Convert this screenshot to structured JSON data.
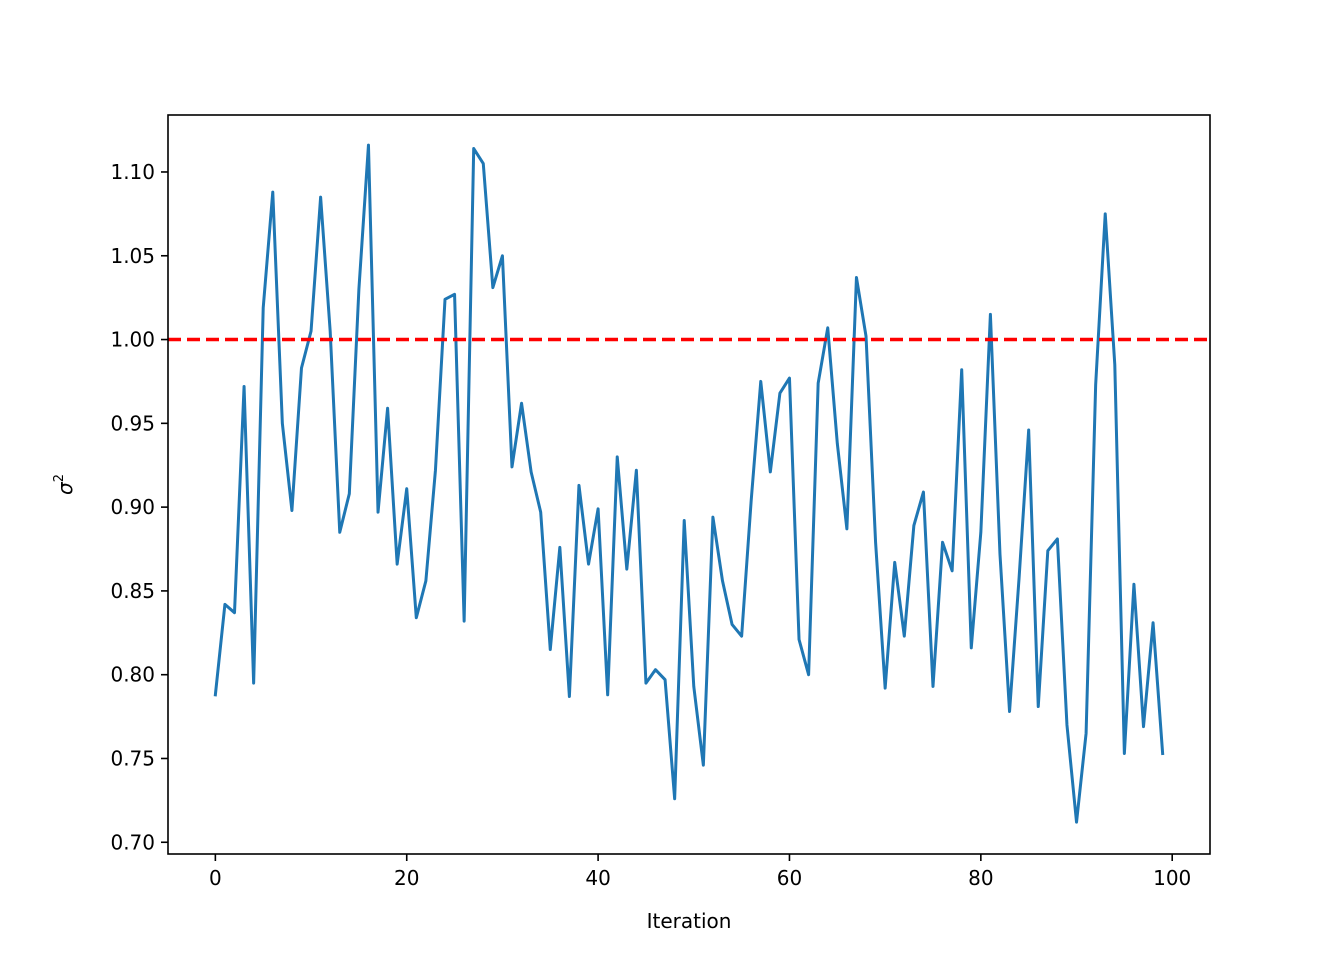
{
  "chart_data": {
    "type": "line",
    "xlabel": "Iteration",
    "ylabel": "σ",
    "ylabel_superscript": "2",
    "xlim": [
      -4.95,
      103.95
    ],
    "ylim": [
      0.693,
      1.134
    ],
    "xticks": [
      0,
      20,
      40,
      60,
      80,
      100
    ],
    "xtick_labels": [
      "0",
      "20",
      "40",
      "60",
      "80",
      "100"
    ],
    "yticks": [
      0.7,
      0.75,
      0.8,
      0.85,
      0.9,
      0.95,
      1.0,
      1.05,
      1.1
    ],
    "ytick_labels": [
      "0.70",
      "0.75",
      "0.80",
      "0.85",
      "0.90",
      "0.95",
      "1.00",
      "1.05",
      "1.10"
    ],
    "grid": false,
    "series": [
      {
        "color": "#1f77b4",
        "x": [
          0,
          1,
          2,
          3,
          4,
          5,
          6,
          7,
          8,
          9,
          10,
          11,
          12,
          13,
          14,
          15,
          16,
          17,
          18,
          19,
          20,
          21,
          22,
          23,
          24,
          25,
          26,
          27,
          28,
          29,
          30,
          31,
          32,
          33,
          34,
          35,
          36,
          37,
          38,
          39,
          40,
          41,
          42,
          43,
          44,
          45,
          46,
          47,
          48,
          49,
          50,
          51,
          52,
          53,
          54,
          55,
          56,
          57,
          58,
          59,
          60,
          61,
          62,
          63,
          64,
          65,
          66,
          67,
          68,
          69,
          70,
          71,
          72,
          73,
          74,
          75,
          76,
          77,
          78,
          79,
          80,
          81,
          82,
          83,
          84,
          85,
          86,
          87,
          88,
          89,
          90,
          91,
          92,
          93,
          94,
          95,
          96,
          97,
          98,
          99
        ],
        "values": [
          0.788,
          0.842,
          0.837,
          0.972,
          0.795,
          1.019,
          1.088,
          0.95,
          0.898,
          0.983,
          1.005,
          1.085,
          1.005,
          0.885,
          0.908,
          1.03,
          1.116,
          0.897,
          0.959,
          0.866,
          0.911,
          0.834,
          0.856,
          0.922,
          1.024,
          1.027,
          0.832,
          1.114,
          1.105,
          1.031,
          1.05,
          0.924,
          0.962,
          0.921,
          0.897,
          0.815,
          0.876,
          0.787,
          0.913,
          0.866,
          0.899,
          0.788,
          0.93,
          0.863,
          0.922,
          0.795,
          0.803,
          0.797,
          0.726,
          0.892,
          0.793,
          0.746,
          0.894,
          0.856,
          0.83,
          0.823,
          0.904,
          0.975,
          0.921,
          0.968,
          0.977,
          0.821,
          0.8,
          0.974,
          1.007,
          0.938,
          0.887,
          1.037,
          1.002,
          0.879,
          0.792,
          0.867,
          0.823,
          0.889,
          0.909,
          0.793,
          0.879,
          0.862,
          0.982,
          0.816,
          0.885,
          1.015,
          0.872,
          0.778,
          0.858,
          0.946,
          0.781,
          0.874,
          0.881,
          0.77,
          0.712,
          0.765,
          0.973,
          1.075,
          0.985,
          0.753,
          0.854,
          0.769,
          0.831,
          0.753
        ]
      }
    ],
    "reference_line": {
      "y": 1.0,
      "color": "#ff0000",
      "style": "dashed"
    }
  }
}
